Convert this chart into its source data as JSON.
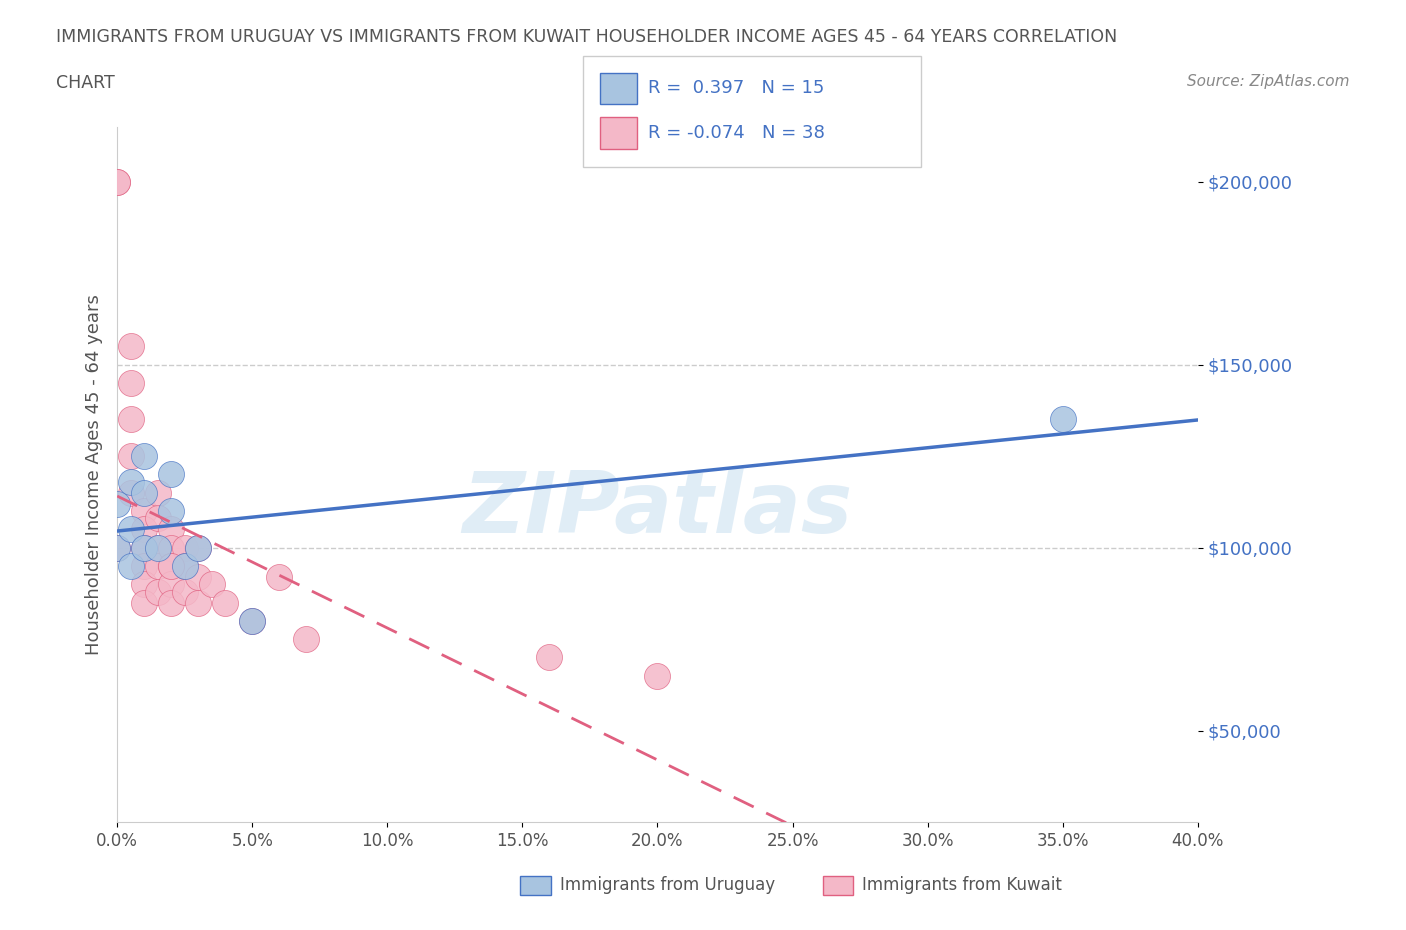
{
  "title_line1": "IMMIGRANTS FROM URUGUAY VS IMMIGRANTS FROM KUWAIT HOUSEHOLDER INCOME AGES 45 - 64 YEARS CORRELATION",
  "title_line2": "CHART",
  "source_text": "Source: ZipAtlas.com",
  "ylabel": "Householder Income Ages 45 - 64 years",
  "xlim": [
    0.0,
    0.4
  ],
  "ylim": [
    25000,
    215000
  ],
  "xtick_labels": [
    "0.0%",
    "5.0%",
    "10.0%",
    "15.0%",
    "20.0%",
    "25.0%",
    "30.0%",
    "35.0%",
    "40.0%"
  ],
  "xtick_values": [
    0.0,
    0.05,
    0.1,
    0.15,
    0.2,
    0.25,
    0.3,
    0.35,
    0.4
  ],
  "ytick_values": [
    50000,
    100000,
    150000,
    200000
  ],
  "ytick_labels": [
    "$50,000",
    "$100,000",
    "$150,000",
    "$200,000"
  ],
  "dashed_hline_values": [
    100000,
    150000
  ],
  "watermark": "ZIPatlas",
  "R_uruguay": 0.397,
  "N_uruguay": 15,
  "R_kuwait": -0.074,
  "N_kuwait": 38,
  "uruguay_color": "#a8c4e0",
  "kuwait_color": "#f4b8c8",
  "uruguay_line_color": "#4472c4",
  "kuwait_line_color": "#e06080",
  "uruguay_scatter_x": [
    0.0,
    0.0,
    0.005,
    0.005,
    0.005,
    0.01,
    0.01,
    0.01,
    0.015,
    0.02,
    0.02,
    0.025,
    0.03,
    0.05,
    0.35
  ],
  "uruguay_scatter_y": [
    100000,
    112000,
    95000,
    105000,
    118000,
    100000,
    115000,
    125000,
    100000,
    110000,
    120000,
    95000,
    100000,
    80000,
    135000
  ],
  "kuwait_scatter_x": [
    0.0,
    0.0,
    0.0,
    0.005,
    0.005,
    0.005,
    0.005,
    0.005,
    0.01,
    0.01,
    0.01,
    0.01,
    0.01,
    0.01,
    0.015,
    0.015,
    0.015,
    0.015,
    0.015,
    0.02,
    0.02,
    0.02,
    0.02,
    0.02,
    0.025,
    0.025,
    0.025,
    0.03,
    0.03,
    0.03,
    0.035,
    0.04,
    0.05,
    0.06,
    0.07,
    0.16,
    0.2,
    0.02
  ],
  "kuwait_scatter_y": [
    200000,
    200000,
    100000,
    155000,
    145000,
    135000,
    125000,
    115000,
    110000,
    105000,
    100000,
    95000,
    90000,
    85000,
    115000,
    108000,
    100000,
    95000,
    88000,
    105000,
    100000,
    95000,
    90000,
    85000,
    100000,
    95000,
    88000,
    100000,
    92000,
    85000,
    90000,
    85000,
    80000,
    92000,
    75000,
    70000,
    65000,
    95000
  ],
  "background_color": "#ffffff",
  "grid_color": "#cccccc",
  "title_color": "#555555",
  "axis_color": "#555555"
}
